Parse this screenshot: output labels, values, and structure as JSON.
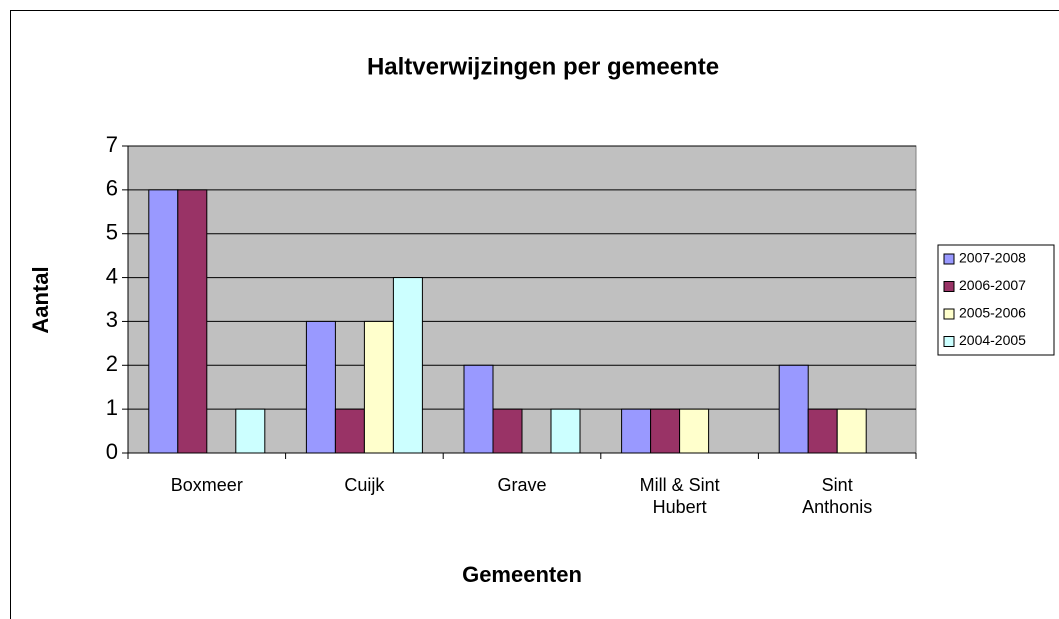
{
  "chart_data": {
    "type": "bar",
    "title": "Haltverwijzingen per gemeente",
    "x_label": "Gemeenten",
    "y_label": "Aantal",
    "categories": [
      "Boxmeer",
      "Cuijk",
      "Grave",
      "Mill & Sint Hubert",
      "Sint Anthonis"
    ],
    "series": [
      {
        "name": "2007-2008",
        "color": "#9999ff",
        "values": [
          6,
          3,
          2,
          1,
          2
        ]
      },
      {
        "name": "2006-2007",
        "color": "#993366",
        "values": [
          6,
          1,
          1,
          1,
          1
        ]
      },
      {
        "name": "2005-2006",
        "color": "#ffffcc",
        "values": [
          0,
          3,
          0,
          1,
          1
        ]
      },
      {
        "name": "2004-2005",
        "color": "#ccffff",
        "values": [
          1,
          4,
          1,
          0,
          0
        ]
      }
    ],
    "ylim": [
      0,
      7
    ],
    "yticks": [
      0,
      1,
      2,
      3,
      4,
      5,
      6,
      7
    ],
    "grid": true,
    "legend": "right"
  }
}
